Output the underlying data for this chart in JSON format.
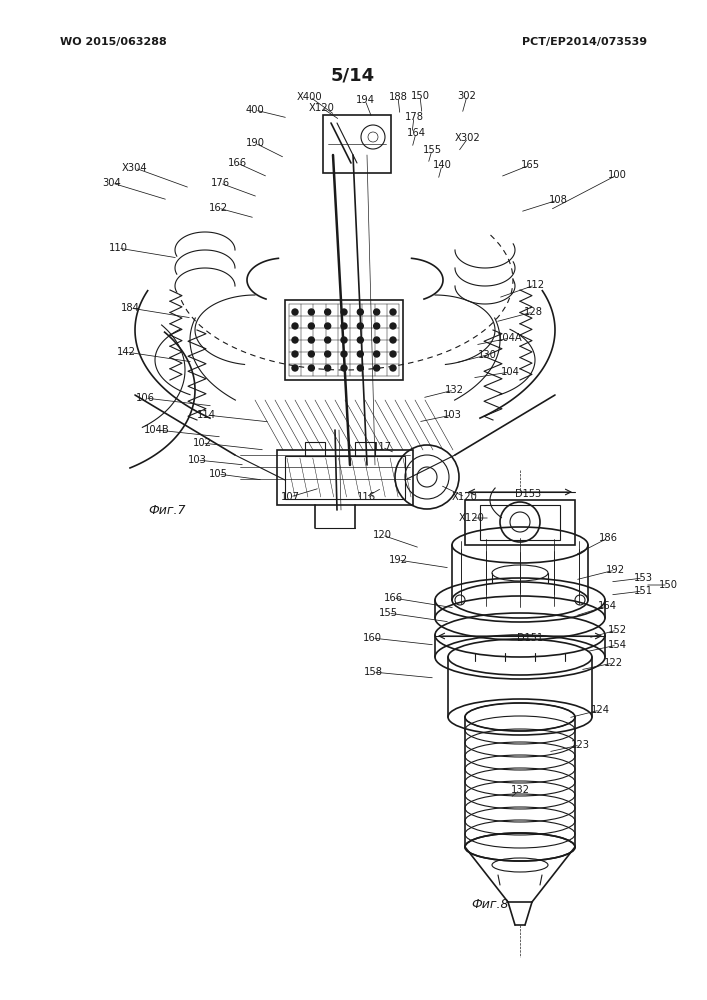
{
  "bg_color": "#ffffff",
  "fig_width": 7.07,
  "fig_height": 10.0,
  "header_left": "WO 2015/063288",
  "header_right": "PCT/EP2014/073539",
  "page_label": "5/14",
  "fig7_label": "Фиг.7",
  "fig8_label": "Фиг.8",
  "line_color": "#1a1a1a",
  "font_size_header": 8,
  "font_size_page": 13
}
